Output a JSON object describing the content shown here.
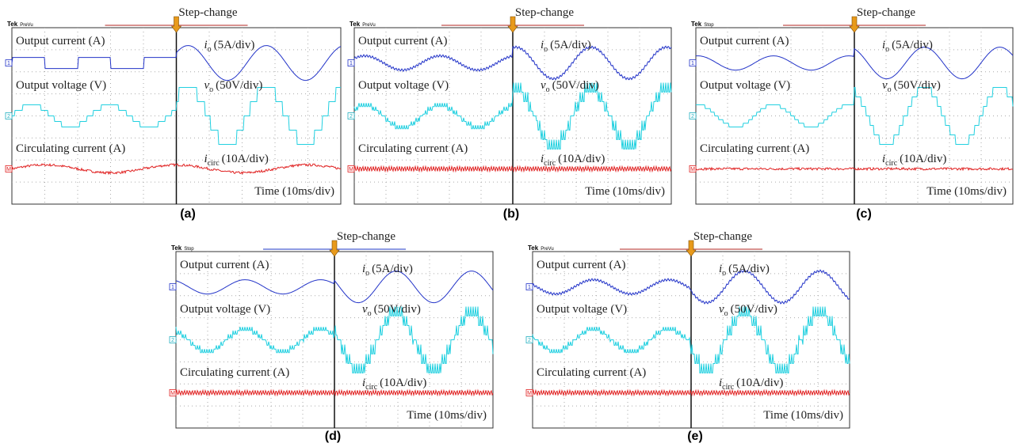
{
  "panels": [
    {
      "label": "(a)",
      "brand": "Tek",
      "status": "PreVu",
      "step": "Step-change",
      "markers": [
        "1",
        "2",
        "M"
      ],
      "ch1_label": "Output current (A)",
      "ch1_symbol": "i",
      "ch1_sub": "o",
      "ch1_scale": "(5A/div)",
      "ch2_label": "Output voltage (V)",
      "ch2_symbol": "v",
      "ch2_sub": "o",
      "ch2_scale": "(50V/div)",
      "ch3_label": "Circulating current (A)",
      "ch3_symbol": "i",
      "ch3_sub": "circ",
      "ch3_scale": "(10A/div)",
      "time_scale": "Time (10ms/div)"
    },
    {
      "label": "(b)",
      "brand": "Tek",
      "status": "PreVu",
      "step": "Step-change",
      "markers": [
        "1",
        "2",
        "M"
      ],
      "ch1_label": "Output current (A)",
      "ch1_symbol": "i",
      "ch1_sub": "o",
      "ch1_scale": "(5A/div)",
      "ch2_label": "Output voltage (V)",
      "ch2_symbol": "v",
      "ch2_sub": "o",
      "ch2_scale": "(50V/div)",
      "ch3_label": "Circulating current (A)",
      "ch3_symbol": "i",
      "ch3_sub": "circ",
      "ch3_scale": "(10A/div)",
      "time_scale": "Time (10ms/div)"
    },
    {
      "label": "(c)",
      "brand": "Tek",
      "status": "Stop",
      "step": "Step-change",
      "markers": [
        "1",
        "2",
        "M"
      ],
      "ch1_label": "Output current (A)",
      "ch1_symbol": "i",
      "ch1_sub": "o",
      "ch1_scale": "(5A/div)",
      "ch2_label": "Output voltage (V)",
      "ch2_symbol": "v",
      "ch2_sub": "o",
      "ch2_scale": "(50V/div)",
      "ch3_label": "Circulating current (A)",
      "ch3_symbol": "i",
      "ch3_sub": "circ",
      "ch3_scale": "(10A/div)",
      "time_scale": "Time (10ms/div)"
    },
    {
      "label": "(d)",
      "brand": "Tek",
      "status": "Stop",
      "step": "Step-change",
      "markers": [
        "1",
        "2",
        "M"
      ],
      "ch1_label": "Output current (A)",
      "ch1_symbol": "i",
      "ch1_sub": "o",
      "ch1_scale": "(5A/div)",
      "ch2_label": "Output voltage (V)",
      "ch2_symbol": "v",
      "ch2_sub": "o",
      "ch2_scale": "(50V/div)",
      "ch3_label": "Circulating current (A)",
      "ch3_symbol": "i",
      "ch3_sub": "circ",
      "ch3_scale": "(10A/div)",
      "time_scale": "Time (10ms/div)"
    },
    {
      "label": "(e)",
      "brand": "Tek",
      "status": "PreVu",
      "step": "Step-change",
      "markers": [
        "1",
        "2",
        "M"
      ],
      "ch1_label": "Output current (A)",
      "ch1_symbol": "i",
      "ch1_sub": "o",
      "ch1_scale": "(5A/div)",
      "ch2_label": "Output voltage (V)",
      "ch2_symbol": "v",
      "ch2_sub": "o",
      "ch2_scale": "(50V/div)",
      "ch3_label": "Circulating current (A)",
      "ch3_symbol": "i",
      "ch3_sub": "circ",
      "ch3_scale": "(10A/div)",
      "time_scale": "Time (10ms/div)"
    }
  ]
}
